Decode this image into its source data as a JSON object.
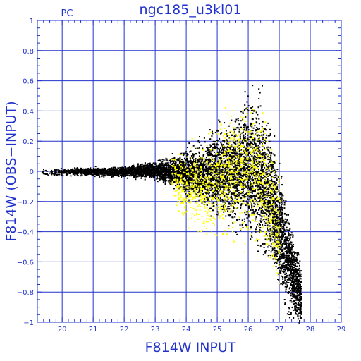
{
  "chart_data": {
    "type": "scatter",
    "title": "ngc185_u3kl01",
    "corner_label": "PC",
    "xlabel": "F814W  INPUT",
    "ylabel": "F814W (OBS−INPUT)",
    "xlim": [
      19.2,
      29
    ],
    "ylim": [
      -1,
      1
    ],
    "x_ticks": [
      20,
      21,
      22,
      23,
      24,
      25,
      26,
      27,
      28,
      29
    ],
    "y_ticks": [
      -1,
      -0.8,
      -0.6,
      -0.4,
      -0.2,
      0,
      0.2,
      0.4,
      0.6,
      0.8,
      1
    ],
    "x_tick_labels": [
      "20",
      "21",
      "22",
      "23",
      "24",
      "25",
      "26",
      "27",
      "28",
      "29"
    ],
    "y_tick_labels": [
      "−1",
      "−0.8",
      "−0.6",
      "−0.4",
      "−0.2",
      "0",
      "0.2",
      "0.4",
      "0.6",
      "0.8",
      "1"
    ],
    "grid": true,
    "series": [
      {
        "color": "#000000",
        "envelope": [
          {
            "x": 19.3,
            "mean": 0.0,
            "spread": 0.02
          },
          {
            "x": 20.0,
            "mean": 0.0,
            "spread": 0.02
          },
          {
            "x": 21.0,
            "mean": 0.0,
            "spread": 0.025
          },
          {
            "x": 22.0,
            "mean": 0.0,
            "spread": 0.03
          },
          {
            "x": 23.0,
            "mean": 0.01,
            "spread": 0.05
          },
          {
            "x": 23.5,
            "mean": 0.0,
            "spread": 0.08
          },
          {
            "x": 24.0,
            "mean": 0.0,
            "spread": 0.12
          },
          {
            "x": 24.5,
            "mean": -0.01,
            "spread": 0.18
          },
          {
            "x": 25.0,
            "mean": 0.0,
            "spread": 0.24
          },
          {
            "x": 25.5,
            "mean": 0.0,
            "spread": 0.3
          },
          {
            "x": 26.0,
            "mean": 0.05,
            "spread": 0.38
          },
          {
            "x": 26.5,
            "mean": -0.05,
            "spread": 0.4
          },
          {
            "x": 26.9,
            "mean": -0.3,
            "spread": 0.35
          },
          {
            "x": 27.3,
            "mean": -0.6,
            "spread": 0.3
          },
          {
            "x": 27.7,
            "mean": -0.85,
            "spread": 0.18
          }
        ]
      },
      {
        "color": "#ffff00",
        "envelope": [
          {
            "x": 23.5,
            "mean": -0.05,
            "spread": 0.15
          },
          {
            "x": 24.0,
            "mean": -0.1,
            "spread": 0.22
          },
          {
            "x": 24.5,
            "mean": -0.1,
            "spread": 0.28
          },
          {
            "x": 25.0,
            "mean": -0.05,
            "spread": 0.32
          },
          {
            "x": 25.5,
            "mean": 0.0,
            "spread": 0.35
          },
          {
            "x": 26.0,
            "mean": 0.05,
            "spread": 0.38
          },
          {
            "x": 26.5,
            "mean": -0.1,
            "spread": 0.4
          },
          {
            "x": 27.0,
            "mean": -0.4,
            "spread": 0.35
          }
        ]
      }
    ]
  }
}
